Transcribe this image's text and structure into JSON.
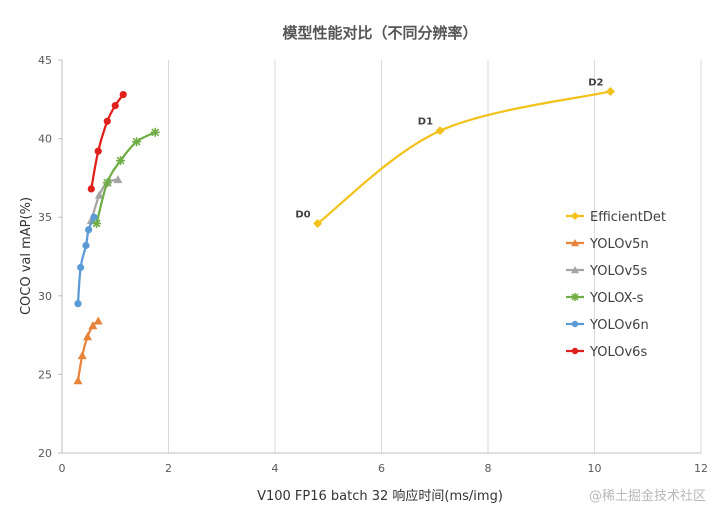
{
  "chart_data": {
    "type": "line",
    "title": "模型性能对比（不同分辨率）",
    "xlabel": "V100 FP16 batch 32 响应时间(ms/img)",
    "ylabel": "COCO val mAP(%)",
    "xlim": [
      0,
      12
    ],
    "ylim": [
      20,
      45
    ],
    "xticks": [
      0,
      2,
      4,
      6,
      8,
      10,
      12
    ],
    "yticks": [
      20,
      25,
      30,
      35,
      40,
      45
    ],
    "grid": "vertical",
    "legend": "right",
    "watermark": "@稀土掘金技术社区",
    "series": [
      {
        "name": "EfficientDet",
        "color": "#f2c21a",
        "marker": "diamond",
        "points": [
          {
            "x": 4.8,
            "y": 34.6,
            "label": "D0"
          },
          {
            "x": 7.1,
            "y": 40.5,
            "label": "D1"
          },
          {
            "x": 10.3,
            "y": 43.0,
            "label": "D2"
          }
        ]
      },
      {
        "name": "YOLOv5n",
        "color": "#e8833a",
        "marker": "triangle",
        "points": [
          {
            "x": 0.3,
            "y": 24.6
          },
          {
            "x": 0.38,
            "y": 26.2
          },
          {
            "x": 0.48,
            "y": 27.4
          },
          {
            "x": 0.58,
            "y": 28.1
          },
          {
            "x": 0.68,
            "y": 28.4
          }
        ]
      },
      {
        "name": "YOLOv5s",
        "color": "#a5a5a5",
        "marker": "triangle",
        "points": [
          {
            "x": 0.55,
            "y": 34.8
          },
          {
            "x": 0.7,
            "y": 36.4
          },
          {
            "x": 0.85,
            "y": 37.2
          },
          {
            "x": 1.05,
            "y": 37.4
          }
        ]
      },
      {
        "name": "YOLOX-s",
        "color": "#70ad47",
        "marker": "star",
        "points": [
          {
            "x": 0.65,
            "y": 34.6
          },
          {
            "x": 0.85,
            "y": 37.2
          },
          {
            "x": 1.1,
            "y": 38.6
          },
          {
            "x": 1.4,
            "y": 39.8
          },
          {
            "x": 1.75,
            "y": 40.4
          }
        ]
      },
      {
        "name": "YOLOv6n",
        "color": "#5b9bd5",
        "marker": "circle",
        "points": [
          {
            "x": 0.3,
            "y": 29.5
          },
          {
            "x": 0.35,
            "y": 31.8
          },
          {
            "x": 0.45,
            "y": 33.2
          },
          {
            "x": 0.5,
            "y": 34.2
          },
          {
            "x": 0.6,
            "y": 35.0
          }
        ]
      },
      {
        "name": "YOLOv6s",
        "color": "#e0201b",
        "marker": "circle",
        "points": [
          {
            "x": 0.55,
            "y": 36.8
          },
          {
            "x": 0.68,
            "y": 39.2
          },
          {
            "x": 0.85,
            "y": 41.1
          },
          {
            "x": 1.0,
            "y": 42.1
          },
          {
            "x": 1.15,
            "y": 42.8
          }
        ]
      }
    ]
  }
}
